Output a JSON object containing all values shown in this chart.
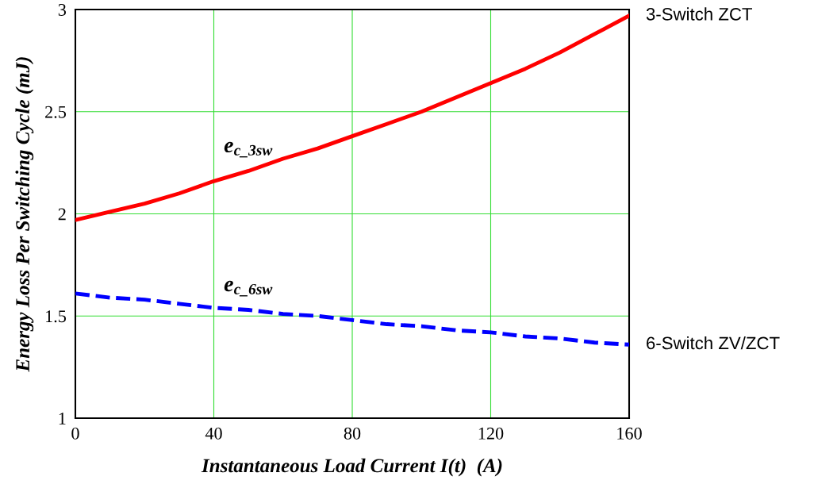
{
  "chart_data": {
    "type": "line",
    "xlabel": "Instantaneous Load Current I(t)  (A)",
    "ylabel": "Energy Loss Per Switching Cycle (mJ)",
    "x": [
      0,
      10,
      20,
      30,
      40,
      50,
      60,
      70,
      80,
      90,
      100,
      110,
      120,
      130,
      140,
      150,
      160
    ],
    "series": [
      {
        "name": "3-Switch ZCT",
        "color": "#ff0000",
        "line_style": "solid",
        "values": [
          1.97,
          2.01,
          2.05,
          2.1,
          2.16,
          2.21,
          2.27,
          2.32,
          2.38,
          2.44,
          2.5,
          2.57,
          2.64,
          2.71,
          2.79,
          2.88,
          2.97
        ]
      },
      {
        "name": "6-Switch ZV/ZCT",
        "color": "#0000ff",
        "line_style": "dashed",
        "values": [
          1.61,
          1.59,
          1.58,
          1.56,
          1.54,
          1.53,
          1.51,
          1.5,
          1.48,
          1.46,
          1.45,
          1.43,
          1.42,
          1.4,
          1.39,
          1.37,
          1.36
        ]
      }
    ],
    "xlim": [
      0,
      160
    ],
    "xticks": [
      0,
      40,
      80,
      120,
      160
    ],
    "ylim": [
      1,
      3
    ],
    "yticks": [
      1,
      1.5,
      2,
      2.5,
      3
    ],
    "grid": true,
    "annotations": [
      "e$_{c_3sw}$",
      "e$_{c_6sw}$"
    ]
  }
}
